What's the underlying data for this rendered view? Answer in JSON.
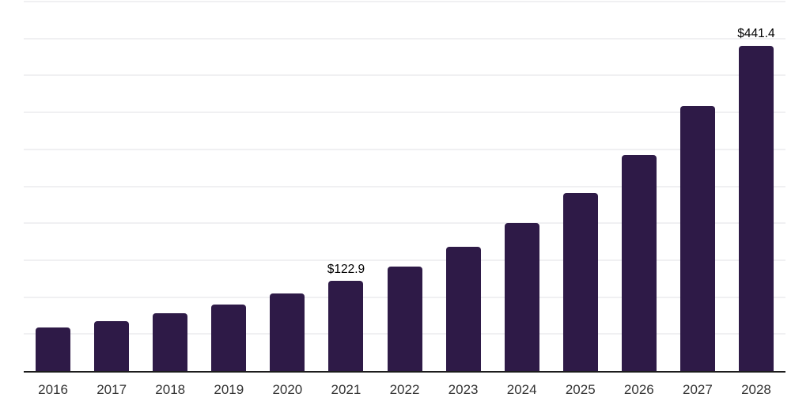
{
  "chart_data": {
    "type": "bar",
    "title": "",
    "xlabel": "",
    "ylabel": "",
    "categories": [
      "2016",
      "2017",
      "2018",
      "2019",
      "2020",
      "2021",
      "2022",
      "2023",
      "2024",
      "2025",
      "2026",
      "2027",
      "2028"
    ],
    "values": [
      60.4,
      68.3,
      79.0,
      91.5,
      105.8,
      122.9,
      142.5,
      169.3,
      201.4,
      241.8,
      293.6,
      359.4,
      441.4
    ],
    "data_labels": {
      "2021": "$122.9",
      "2028": "$441.4"
    },
    "ylim": [
      0,
      500
    ],
    "grid_step": 50,
    "grid": "horizontal-only",
    "legend": "none",
    "y_tick_labels": "none",
    "bar_color": "#2e1a47",
    "gridline_color": "#f0f0f2",
    "axis_line_color": "#1c1c1c",
    "data_label_color": "#000000",
    "tick_label_color": "#333333"
  }
}
